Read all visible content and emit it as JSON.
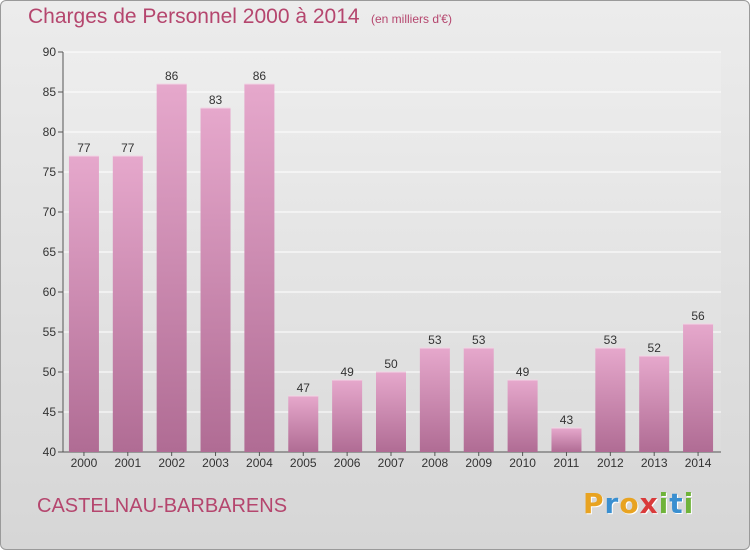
{
  "header": {
    "title": "Charges de Personnel 2000 à 2014",
    "unit_note": "(en milliers d'€)"
  },
  "footer": {
    "place": "CASTELNAU-BARBARENS",
    "logo": {
      "letters": [
        "P",
        "r",
        "o",
        "x",
        "i",
        "t",
        "i"
      ],
      "colors": [
        "#e8a321",
        "#3a8fd0",
        "#e8a321",
        "#d93a3a",
        "#6fb33a",
        "#3a8fd0",
        "#6fb33a"
      ]
    }
  },
  "chart_data": {
    "type": "bar",
    "categories": [
      "2000",
      "2001",
      "2002",
      "2003",
      "2004",
      "2005",
      "2006",
      "2007",
      "2008",
      "2009",
      "2010",
      "2011",
      "2012",
      "2013",
      "2014"
    ],
    "values": [
      77,
      77,
      86,
      83,
      86,
      47,
      49,
      50,
      53,
      53,
      49,
      43,
      53,
      52,
      56
    ],
    "title": "Charges de Personnel 2000 à 2014",
    "subtitle": "(en milliers d'€)",
    "xlabel": "",
    "ylabel": "",
    "ylim": [
      40,
      90
    ],
    "yticks": [
      40,
      45,
      50,
      55,
      60,
      65,
      70,
      75,
      80,
      85,
      90
    ],
    "grid": true,
    "data_labels": true,
    "bar_color_top": "#e6a8cc",
    "bar_color_bottom": "#b06c94"
  }
}
